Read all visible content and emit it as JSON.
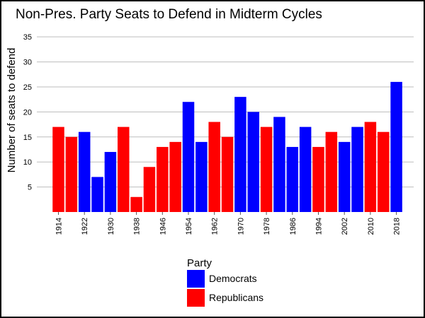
{
  "chart_data": {
    "type": "bar",
    "title": "Non-Pres. Party Seats to Defend in Midterm Cycles",
    "xlabel": "",
    "ylabel": "Number of seats to defend",
    "ylim": [
      0,
      37
    ],
    "yticks": [
      5,
      10,
      15,
      20,
      25,
      30,
      35
    ],
    "grid": true,
    "legend_placement": "bottom",
    "legend_title": "Party",
    "x": [
      1914,
      1918,
      1922,
      1926,
      1930,
      1934,
      1938,
      1942,
      1946,
      1950,
      1954,
      1958,
      1962,
      1966,
      1970,
      1974,
      1978,
      1982,
      1986,
      1990,
      1994,
      1998,
      2002,
      2006,
      2010,
      2014,
      2018
    ],
    "values": [
      17,
      15,
      16,
      7,
      12,
      17,
      3,
      9,
      13,
      14,
      22,
      14,
      18,
      15,
      23,
      20,
      17,
      19,
      13,
      17,
      13,
      16,
      14,
      17,
      18,
      16,
      26
    ],
    "party": [
      "Republicans",
      "Republicans",
      "Democrats",
      "Democrats",
      "Democrats",
      "Republicans",
      "Republicans",
      "Republicans",
      "Republicans",
      "Republicans",
      "Democrats",
      "Democrats",
      "Republicans",
      "Republicans",
      "Democrats",
      "Democrats",
      "Republicans",
      "Democrats",
      "Democrats",
      "Democrats",
      "Republicans",
      "Republicans",
      "Democrats",
      "Democrats",
      "Republicans",
      "Republicans",
      "Democrats"
    ],
    "xtick_labels": [
      "1914",
      "1922",
      "1930",
      "1938",
      "1946",
      "1954",
      "1962",
      "1970",
      "1978",
      "1986",
      "1994",
      "2002",
      "2010",
      "2018"
    ],
    "series": [
      {
        "name": "Democrats",
        "color": "#0000ff"
      },
      {
        "name": "Republicans",
        "color": "#ff0000"
      }
    ]
  }
}
